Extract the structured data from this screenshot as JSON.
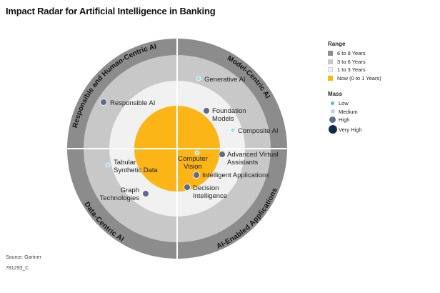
{
  "title": "Impact Radar for Artificial Intelligence in Banking",
  "colors": {
    "range_6_8": "#8c8c8c",
    "range_3_6": "#c8c8c8",
    "range_1_3": "#f1f1f1",
    "range_now": "#fbb516",
    "mass_low": "#5bb8e0",
    "mass_medium": "#a9dcf1",
    "mass_high": "#5d6c8c",
    "mass_very_high": "#0e2c52"
  },
  "segments": [
    {
      "name": "Responsible and Human-Centric AI"
    },
    {
      "name": "Model-Centric AI"
    },
    {
      "name": "Data-Centric AI"
    },
    {
      "name": "AI-Enabled Applications"
    }
  ],
  "items": [
    {
      "label": "Generative AI",
      "mass": "medium"
    },
    {
      "label": "Responsible AI",
      "mass": "high"
    },
    {
      "label": "Foundation Models",
      "mass": "high"
    },
    {
      "label": "Composite AI",
      "mass": "medium"
    },
    {
      "label": "Computer Vision",
      "mass": "medium"
    },
    {
      "label": "Advanced Virtual Assistants",
      "mass": "high"
    },
    {
      "label": "Tabular Synthetic Data",
      "mass": "medium"
    },
    {
      "label": "Intelligent Applications",
      "mass": "high"
    },
    {
      "label": "Graph Technologies",
      "mass": "high"
    },
    {
      "label": "Decision Intelligence",
      "mass": "high"
    }
  ],
  "legend": {
    "range_title": "Range",
    "range_items": [
      {
        "label": "6 to 8 Years",
        "color_key": "range_6_8"
      },
      {
        "label": "3 to 6 Years",
        "color_key": "range_3_6"
      },
      {
        "label": "1 to 3 Years",
        "color_key": "range_1_3"
      },
      {
        "label": "Now (0 to 1 Years)",
        "color_key": "range_now"
      }
    ],
    "mass_title": "Mass",
    "mass_items": [
      {
        "label": "Low",
        "color_key": "mass_low",
        "level": "low"
      },
      {
        "label": "Medium",
        "color_key": "mass_medium",
        "level": "medium"
      },
      {
        "label": "High",
        "color_key": "mass_high",
        "level": "high"
      },
      {
        "label": "Very High",
        "color_key": "mass_very_high",
        "level": "very_high"
      }
    ]
  },
  "footer": {
    "source": "Source: Gartner",
    "id": "781293_C"
  }
}
